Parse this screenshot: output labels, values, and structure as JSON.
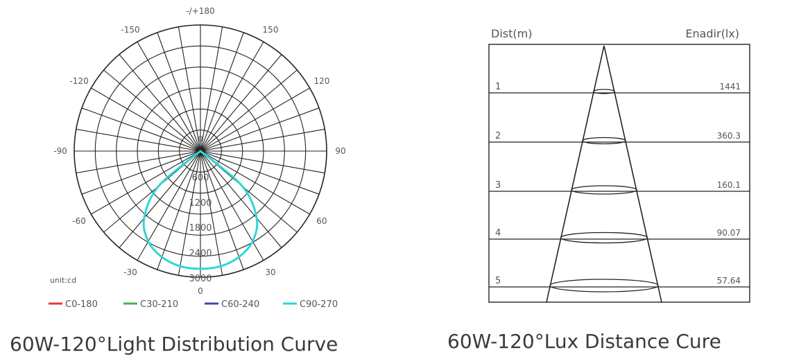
{
  "chart_data": [
    {
      "type": "polar",
      "title": "60W-120°Light Distribution Curve",
      "unit_label": "unit:cd",
      "angle_labels": [
        "-/+180",
        "-150",
        "150",
        "-120",
        "120",
        "-90",
        "90",
        "-60",
        "60",
        "-30",
        "30",
        "0"
      ],
      "radial_ticks": [
        "600",
        "1200",
        "1800",
        "2400",
        "3000"
      ],
      "radial_max": 3000,
      "center_label": "0",
      "series": [
        {
          "name": "C0-180",
          "color": "#e53935"
        },
        {
          "name": "C30-210",
          "color": "#4caf50"
        },
        {
          "name": "C60-240",
          "color": "#3949ab"
        },
        {
          "name": "C90-270",
          "color": "#2ed6d6"
        }
      ],
      "curve": {
        "angles": [
          -60,
          -50,
          -40,
          -30,
          -20,
          -10,
          0,
          10,
          20,
          30,
          40,
          50,
          60
        ],
        "values": [
          0,
          1300,
          2080,
          2480,
          2680,
          2780,
          2800,
          2780,
          2680,
          2480,
          2080,
          1300,
          0
        ]
      }
    },
    {
      "type": "table",
      "title": "60W-120°Lux Distance Cure",
      "col_left": "Dist(m)",
      "col_right": "Enadir(lx)",
      "rows": [
        {
          "dist": "1",
          "lux": "1441"
        },
        {
          "dist": "2",
          "lux": "360.3"
        },
        {
          "dist": "3",
          "lux": "160.1"
        },
        {
          "dist": "4",
          "lux": "90.07"
        },
        {
          "dist": "5",
          "lux": "57.64"
        }
      ]
    }
  ]
}
